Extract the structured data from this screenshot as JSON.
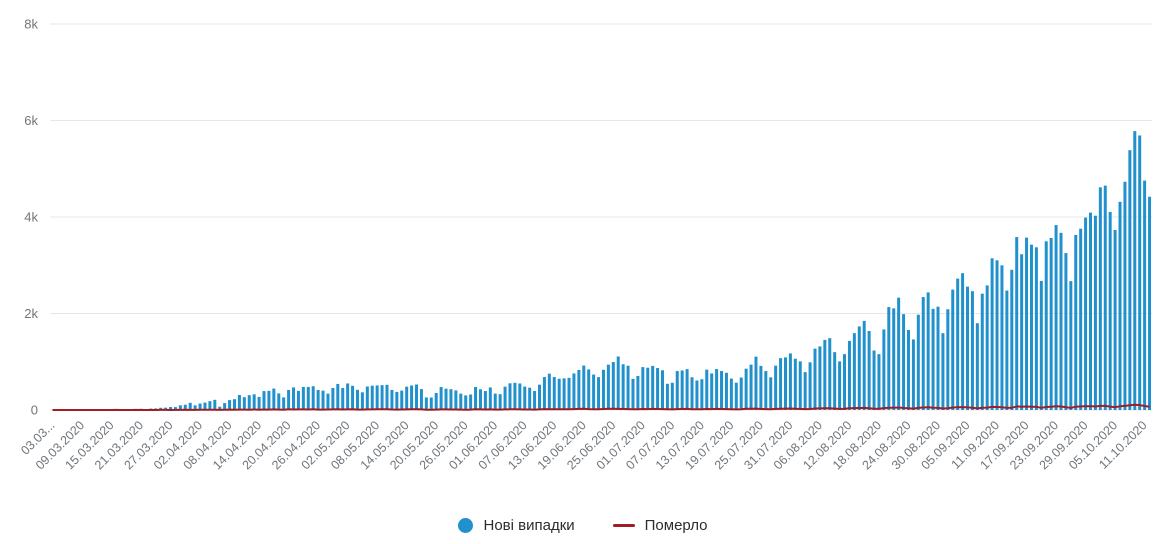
{
  "legend": {
    "items": [
      {
        "label": "Нові випадки",
        "color": "#2191CD",
        "marker": "circle"
      },
      {
        "label": "Померло",
        "color": "#A01D24",
        "marker": "line"
      }
    ]
  },
  "chart_data": {
    "type": "bar",
    "title": "",
    "xlabel": "",
    "ylabel": "",
    "ylim": [
      0,
      8000
    ],
    "grid": true,
    "legend_position": "bottom-center",
    "start_date": "03.03.2020",
    "end_date": "12.10.2020",
    "frequency": "daily",
    "x_tick_interval": 6,
    "x_tick_labels": [
      "03.03...",
      "09.03.2020",
      "15.03.2020",
      "21.03.2020",
      "27.03.2020",
      "02.04.2020",
      "08.04.2020",
      "14.04.2020",
      "20.04.2020",
      "26.04.2020",
      "02.05.2020",
      "08.05.2020",
      "14.05.2020",
      "20.05.2020",
      "26.05.2020",
      "01.06.2020",
      "07.06.2020",
      "13.06.2020",
      "19.06.2020",
      "25.06.2020",
      "01.07.2020",
      "07.07.2020",
      "13.07.2020",
      "19.07.2020",
      "25.07.2020",
      "31.07.2020",
      "06.08.2020",
      "12.08.2020",
      "18.08.2020",
      "24.08.2020",
      "30.08.2020",
      "05.09.2020",
      "11.09.2020",
      "17.09.2020",
      "23.09.2020",
      "29.09.2020",
      "05.10.2020",
      "11.10.2020"
    ],
    "y_ticks": [
      {
        "value": 0,
        "label": "0"
      },
      {
        "value": 2000,
        "label": "2k"
      },
      {
        "value": 4000,
        "label": "4k"
      },
      {
        "value": 6000,
        "label": "6k"
      },
      {
        "value": 8000,
        "label": "8k"
      }
    ],
    "series": [
      {
        "name": "Нові випадки",
        "type": "bar",
        "color": "#2191CD",
        "values": [
          1,
          0,
          0,
          0,
          0,
          0,
          1,
          0,
          1,
          2,
          2,
          4,
          7,
          7,
          5,
          12,
          15,
          21,
          26,
          19,
          30,
          33,
          46,
          48,
          62,
          60,
          97,
          109,
          149,
          97,
          134,
          154,
          183,
          211,
          68,
          143,
          206,
          224,
          311,
          266,
          308,
          325,
          270,
          392,
          397,
          444,
          343,
          261,
          415,
          467,
          397,
          477,
          478,
          492,
          415,
          401,
          339,
          456,
          540,
          455,
          550,
          502,
          418,
          366,
          487,
          504,
          509,
          515,
          522,
          416,
          375,
          402,
          483,
          508,
          528,
          433,
          260,
          259,
          354,
          476,
          442,
          432,
          406,
          339,
          303,
          321,
          477,
          429,
          393,
          468,
          340,
          328,
          483,
          553,
          563,
          550,
          485,
          463,
          394,
          525,
          683,
          753,
          683,
          648,
          656,
          666,
          758,
          829,
          921,
          841,
          735,
          681,
          833,
          940,
          994,
          1109,
          948,
          917,
          646,
          706,
          889,
          876,
          914,
          870,
          823,
          543,
          564,
          807,
          819,
          847,
          678,
          612,
          638,
          836,
          758,
          848,
          809,
          771,
          651,
          566,
          673,
          856,
          940,
          1106,
          914,
          807,
          677,
          919,
          1075,
          1090,
          1172,
          1063,
          1008,
          785,
          988,
          1271,
          1318,
          1453,
          1489,
          1199,
          1008,
          1158,
          1433,
          1592,
          1732,
          1847,
          1637,
          1233,
          1158,
          1670,
          2134,
          2106,
          2328,
          1987,
          1658,
          1462,
          1975,
          2341,
          2438,
          2096,
          2141,
          1592,
          2088,
          2495,
          2723,
          2836,
          2556,
          2462,
          1799,
          2411,
          2582,
          3144,
          3103,
          2998,
          2476,
          2905,
          3584,
          3228,
          3573,
          3427,
          3372,
          2675,
          3497,
          3565,
          3833,
          3672,
          3252,
          2671,
          3627,
          3757,
          3987,
          4090,
          4027,
          4615,
          4650,
          4105,
          3730,
          4315,
          4730,
          5385,
          5780,
          5690,
          4755,
          4420
        ]
      },
      {
        "name": "Померло",
        "type": "line",
        "color": "#A01D24",
        "values": [
          0,
          0,
          0,
          0,
          0,
          0,
          0,
          0,
          0,
          0,
          1,
          0,
          0,
          2,
          0,
          1,
          0,
          2,
          0,
          1,
          1,
          0,
          3,
          2,
          1,
          3,
          2,
          5,
          3,
          3,
          5,
          4,
          6,
          5,
          2,
          4,
          8,
          5,
          9,
          8,
          7,
          10,
          6,
          11,
          9,
          12,
          8,
          5,
          14,
          10,
          12,
          13,
          11,
          14,
          9,
          8,
          10,
          13,
          15,
          10,
          12,
          14,
          9,
          8,
          13,
          12,
          15,
          14,
          17,
          11,
          9,
          10,
          13,
          16,
          14,
          12,
          6,
          7,
          9,
          13,
          12,
          11,
          10,
          8,
          7,
          9,
          14,
          12,
          10,
          13,
          9,
          8,
          12,
          14,
          16,
          13,
          11,
          10,
          9,
          13,
          18,
          17,
          16,
          14,
          15,
          16,
          19,
          23,
          24,
          19,
          16,
          14,
          21,
          26,
          25,
          23,
          20,
          18,
          15,
          17,
          20,
          19,
          23,
          21,
          18,
          14,
          13,
          19,
          20,
          22,
          17,
          15,
          14,
          21,
          19,
          22,
          20,
          18,
          15,
          13,
          16,
          24,
          26,
          29,
          21,
          18,
          15,
          22,
          27,
          28,
          31,
          25,
          23,
          18,
          21,
          32,
          34,
          37,
          35,
          28,
          22,
          26,
          36,
          39,
          42,
          44,
          38,
          27,
          24,
          40,
          48,
          47,
          51,
          42,
          35,
          30,
          44,
          52,
          55,
          46,
          43,
          31,
          38,
          52,
          57,
          60,
          53,
          48,
          34,
          45,
          50,
          64,
          62,
          58,
          44,
          46,
          74,
          66,
          72,
          68,
          65,
          46,
          63,
          66,
          76,
          72,
          58,
          43,
          67,
          75,
          78,
          80,
          72,
          84,
          86,
          70,
          57,
          76,
          86,
          100,
          108,
          102,
          83,
          68
        ]
      }
    ]
  }
}
